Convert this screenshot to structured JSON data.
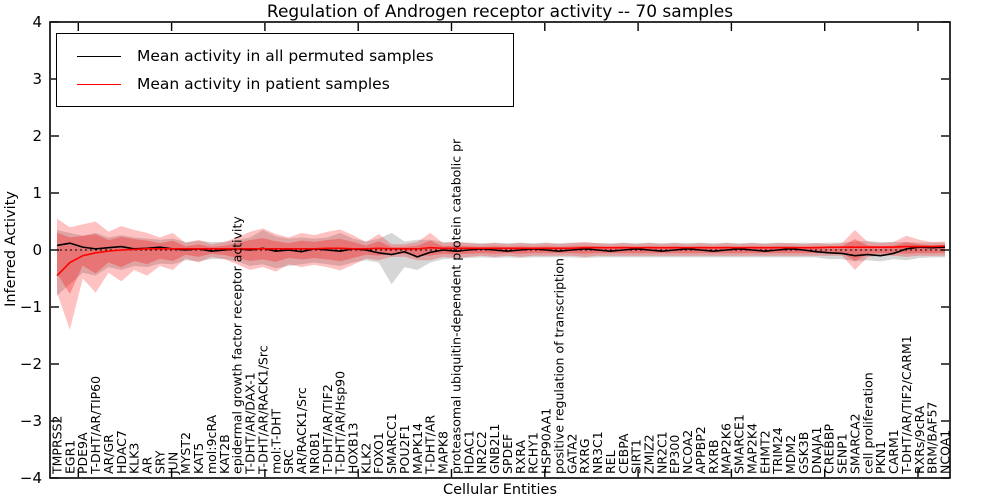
{
  "title": "Regulation of Androgen receptor activity -- 70 samples",
  "legend": {
    "items": [
      {
        "label": "Mean activity in all permuted samples",
        "color": "#000000"
      },
      {
        "label": "Mean activity in patient samples",
        "color": "#ff0000"
      }
    ]
  },
  "chart_data": {
    "type": "line",
    "title": "Regulation of Androgen receptor activity -- 70 samples",
    "xlabel": "Cellular Entities",
    "ylabel": "Inferred Activity",
    "ylim": [
      -4,
      4
    ],
    "grid": false,
    "legend_position": "upper left",
    "zero_line": {
      "style": "dotted",
      "color": "#000000"
    },
    "yticks": [
      4,
      3,
      2,
      1,
      0,
      -1,
      -2,
      -3,
      -4
    ],
    "ytick_labels": [
      "4",
      "3",
      "2",
      "1",
      "0",
      "−1",
      "−2",
      "−3",
      "−4"
    ],
    "categories": [
      "TMPRSS2",
      "EGR1",
      "PDE9A",
      "T-DHT/AR/TIP60",
      "AR/GR",
      "HDAC7",
      "KLK3",
      "AR",
      "SRY",
      "JUN",
      "MYST2",
      "KAT5",
      "mol:9cRA",
      "KAT2B",
      "epidermal growth factor receptor activity",
      "T-DHT/AR/DAX-1",
      "T-DHT/AR/RACK1/Src",
      "mol:T-DHT",
      "SRC",
      "AR/RACK1/Src",
      "NR0B1",
      "T-DHT/AR/TIF2",
      "T-DHT/AR/Hsp90",
      "HOXB13",
      "KLK2",
      "FOXO1",
      "SMARCC1",
      "POU2F1",
      "MAPK14",
      "T-DHT/AR",
      "MAPK8",
      "proteasomal ubiquitin-dependent protein catabolic pr",
      "HDAC1",
      "NR2C2",
      "GNB2L1",
      "SPDEF",
      "RXRA",
      "RCHY1",
      "HSP90AA1",
      "positive regulation of transcription",
      "GATA2",
      "RXRG",
      "NR3C1",
      "REL",
      "CEBPA",
      "SIRT1",
      "ZMIZ2",
      "NR2C1",
      "EP300",
      "NCOA2",
      "APPBP2",
      "RXRB",
      "MAP2K6",
      "SMARCE1",
      "MAP2K4",
      "EHMT2",
      "TRIM24",
      "MDM2",
      "GSK3B",
      "DNAJA1",
      "CREBBP",
      "SENP1",
      "SMARCA2",
      "cell proliferation",
      "PKN1",
      "CARM1",
      "T-DHT/AR/TIF2/CARM1",
      "RXRs/9cRA",
      "BRM/BAF57",
      "NCOA1"
    ],
    "series": [
      {
        "name": "Mean activity in all permuted samples",
        "color": "#000000",
        "values": [
          0.08,
          0.12,
          0.05,
          0.02,
          0.04,
          0.06,
          0.02,
          0.03,
          0.05,
          0.02,
          0.0,
          0.02,
          -0.02,
          0.0,
          0.02,
          0.0,
          0.03,
          -0.02,
          0.0,
          -0.03,
          0.02,
          0.0,
          -0.02,
          0.02,
          0.0,
          -0.05,
          -0.08,
          -0.03,
          -0.12,
          -0.04,
          0.0,
          -0.02,
          0.0,
          0.02,
          0.0,
          -0.02,
          0.0,
          0.02,
          0.0,
          -0.02,
          0.0,
          0.02,
          0.0,
          -0.02,
          0.0,
          0.02,
          0.0,
          -0.02,
          0.0,
          0.02,
          0.0,
          -0.02,
          0.0,
          0.02,
          0.0,
          -0.02,
          0.0,
          0.02,
          0.0,
          -0.03,
          -0.05,
          -0.06,
          -0.1,
          -0.08,
          -0.1,
          -0.06,
          0.02,
          0.05,
          0.04,
          0.05
        ]
      },
      {
        "name": "Mean activity in patient samples",
        "color": "#ff0000",
        "values": [
          -0.45,
          -0.22,
          -0.1,
          -0.05,
          -0.02,
          0.0,
          0.01,
          0.02,
          0.02,
          0.02,
          0.02,
          0.02,
          0.02,
          0.02,
          0.02,
          0.02,
          0.02,
          0.02,
          0.02,
          0.02,
          0.02,
          0.03,
          0.03,
          0.02,
          0.02,
          0.03,
          0.02,
          0.02,
          0.02,
          0.04,
          0.03,
          0.03,
          0.03,
          0.03,
          0.03,
          0.03,
          0.03,
          0.03,
          0.03,
          0.03,
          0.03,
          0.04,
          0.04,
          0.04,
          0.04,
          0.04,
          0.04,
          0.04,
          0.04,
          0.04,
          0.04,
          0.04,
          0.04,
          0.04,
          0.04,
          0.04,
          0.04,
          0.04,
          0.04,
          0.04,
          0.05,
          0.05,
          0.05,
          0.05,
          0.05,
          0.05,
          0.06,
          0.06,
          0.06,
          0.07
        ]
      }
    ],
    "bands": [
      {
        "name": "permuted-range",
        "color": "#808080",
        "opacity": 0.32,
        "upper": [
          0.35,
          0.3,
          0.25,
          0.3,
          0.22,
          0.26,
          0.22,
          0.2,
          0.18,
          0.2,
          0.14,
          0.16,
          0.14,
          0.14,
          0.18,
          0.22,
          0.35,
          0.24,
          0.2,
          0.22,
          0.2,
          0.22,
          0.3,
          0.2,
          0.15,
          0.2,
          0.3,
          0.15,
          0.18,
          0.18,
          0.14,
          0.14,
          0.13,
          0.12,
          0.13,
          0.12,
          0.13,
          0.12,
          0.13,
          0.12,
          0.13,
          0.13,
          0.12,
          0.12,
          0.13,
          0.12,
          0.13,
          0.12,
          0.13,
          0.12,
          0.13,
          0.12,
          0.13,
          0.12,
          0.13,
          0.12,
          0.13,
          0.12,
          0.13,
          0.12,
          0.13,
          0.13,
          0.15,
          0.16,
          0.14,
          0.14,
          0.14,
          0.13,
          0.13,
          0.13
        ],
        "lower": [
          -0.8,
          -0.6,
          -0.4,
          -0.45,
          -0.3,
          -0.35,
          -0.28,
          -0.3,
          -0.24,
          -0.25,
          -0.18,
          -0.2,
          -0.16,
          -0.16,
          -0.2,
          -0.28,
          -0.25,
          -0.32,
          -0.28,
          -0.25,
          -0.22,
          -0.25,
          -0.28,
          -0.22,
          -0.18,
          -0.22,
          -0.6,
          -0.3,
          -0.35,
          -0.22,
          -0.16,
          -0.15,
          -0.14,
          -0.13,
          -0.14,
          -0.13,
          -0.14,
          -0.13,
          -0.13,
          -0.13,
          -0.13,
          -0.14,
          -0.13,
          -0.13,
          -0.13,
          -0.13,
          -0.13,
          -0.13,
          -0.13,
          -0.13,
          -0.13,
          -0.13,
          -0.13,
          -0.13,
          -0.13,
          -0.13,
          -0.13,
          -0.13,
          -0.13,
          -0.13,
          -0.16,
          -0.16,
          -0.2,
          -0.18,
          -0.2,
          -0.16,
          -0.18,
          -0.14,
          -0.13,
          -0.13
        ]
      },
      {
        "name": "patient-range",
        "color": "#ff0000",
        "opacity": 0.24,
        "upper": [
          0.55,
          0.4,
          0.45,
          0.5,
          0.32,
          0.42,
          0.35,
          0.3,
          0.22,
          0.3,
          0.12,
          0.18,
          0.1,
          0.14,
          0.22,
          0.32,
          0.38,
          0.28,
          0.22,
          0.3,
          0.26,
          0.32,
          0.36,
          0.26,
          0.14,
          0.28,
          0.1,
          0.1,
          0.14,
          0.3,
          0.12,
          0.14,
          0.12,
          0.1,
          0.12,
          0.1,
          0.12,
          0.1,
          0.12,
          0.1,
          0.12,
          0.14,
          0.12,
          0.1,
          0.12,
          0.1,
          0.12,
          0.1,
          0.12,
          0.1,
          0.12,
          0.1,
          0.12,
          0.1,
          0.12,
          0.1,
          0.12,
          0.12,
          0.1,
          0.12,
          0.1,
          0.12,
          0.35,
          0.14,
          0.12,
          0.14,
          0.25,
          0.18,
          0.14,
          0.15
        ],
        "lower": [
          -0.75,
          -1.4,
          -0.5,
          -0.75,
          -0.4,
          -0.55,
          -0.35,
          -0.45,
          -0.28,
          -0.35,
          -0.15,
          -0.22,
          -0.12,
          -0.16,
          -0.25,
          -0.35,
          -0.3,
          -0.38,
          -0.25,
          -0.3,
          -0.26,
          -0.3,
          -0.36,
          -0.26,
          -0.15,
          -0.18,
          -0.12,
          -0.12,
          -0.18,
          -0.18,
          -0.12,
          -0.14,
          -0.12,
          -0.1,
          -0.12,
          -0.1,
          -0.12,
          -0.1,
          -0.1,
          -0.1,
          -0.1,
          -0.12,
          -0.1,
          -0.1,
          -0.1,
          -0.1,
          -0.1,
          -0.1,
          -0.1,
          -0.1,
          -0.1,
          -0.1,
          -0.1,
          -0.1,
          -0.1,
          -0.1,
          -0.1,
          -0.1,
          -0.1,
          -0.1,
          -0.1,
          -0.1,
          -0.35,
          -0.12,
          -0.1,
          -0.1,
          -0.12,
          -0.1,
          -0.1,
          -0.1
        ]
      }
    ]
  }
}
